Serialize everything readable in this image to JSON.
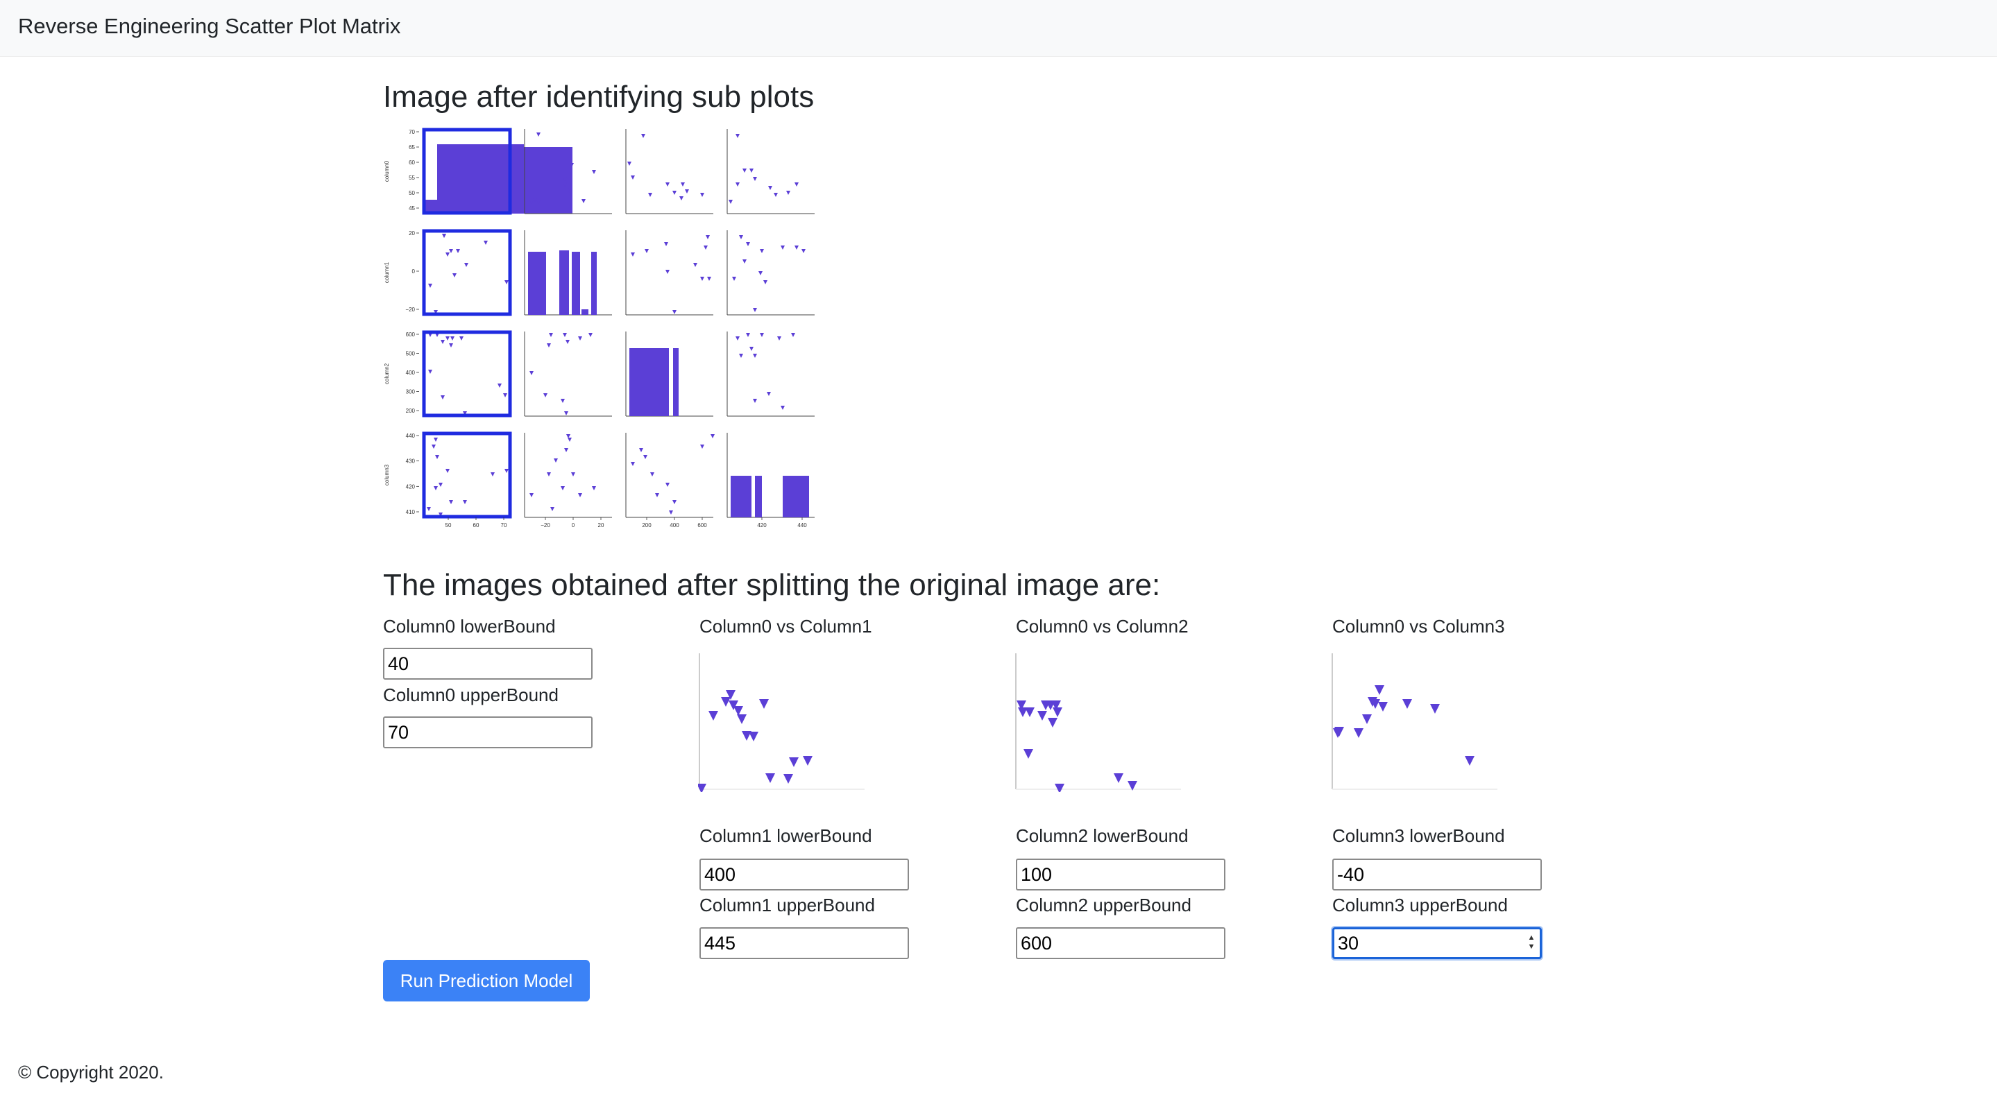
{
  "navbar": {
    "brand": "Reverse Engineering Scatter Plot Matrix"
  },
  "section1": {
    "heading": "Image after identifying sub plots"
  },
  "section2": {
    "heading": "The images obtained after splitting the original image are:"
  },
  "matrix": {
    "columns": [
      "column0",
      "column1",
      "column2",
      "column3"
    ],
    "x_ticks": [
      [
        "50",
        "60",
        "70"
      ],
      [
        "−20",
        "0",
        "20"
      ],
      [
        "200",
        "400",
        "600"
      ],
      [
        "420",
        "440"
      ]
    ],
    "y_ticks": [
      [
        "70",
        "65",
        "60",
        "55",
        "50",
        "45"
      ],
      [
        "20",
        "0",
        "−20"
      ],
      [
        "600",
        "500",
        "400",
        "300",
        "200"
      ],
      [
        "440",
        "430",
        "420",
        "410"
      ]
    ],
    "mark_color": "#5b3fd6",
    "highlight_color": "#1f2be0"
  },
  "chart_data": [
    {
      "type": "scatter",
      "title": "Column0 vs Column1",
      "points": [
        [
          22,
          95
        ],
        [
          40,
          75
        ],
        [
          47,
          65
        ],
        [
          51,
          80
        ],
        [
          58,
          88
        ],
        [
          63,
          100
        ],
        [
          70,
          124
        ],
        [
          80,
          125
        ],
        [
          95,
          78
        ],
        [
          104,
          185
        ],
        [
          138,
          162
        ],
        [
          158,
          160
        ],
        [
          160,
          238
        ],
        [
          130,
          186
        ],
        [
          5,
          200
        ],
        [
          10,
          232
        ],
        [
          5,
          262
        ]
      ]
    },
    {
      "type": "scatter",
      "title": "Column0 vs Column2",
      "points": [
        [
          10,
          80
        ],
        [
          12,
          90
        ],
        [
          22,
          90
        ],
        [
          40,
          95
        ],
        [
          45,
          80
        ],
        [
          52,
          80
        ],
        [
          60,
          80
        ],
        [
          62,
          90
        ],
        [
          55,
          105
        ],
        [
          20,
          150
        ],
        [
          65,
          200
        ],
        [
          90,
          250
        ],
        [
          150,
          185
        ],
        [
          170,
          196
        ],
        [
          200,
          232
        ]
      ]
    },
    {
      "type": "scatter",
      "title": "Column0 vs Column3",
      "points": [
        [
          70,
          58
        ],
        [
          60,
          75
        ],
        [
          64,
          78
        ],
        [
          75,
          82
        ],
        [
          52,
          100
        ],
        [
          40,
          120
        ],
        [
          10,
          120
        ],
        [
          110,
          78
        ],
        [
          150,
          85
        ],
        [
          200,
          160
        ],
        [
          8,
          252
        ],
        [
          12,
          118
        ]
      ]
    }
  ],
  "inputs": {
    "c0_lower_label": "Column0 lowerBound",
    "c0_lower": "40",
    "c0_upper_label": "Column0 upperBound",
    "c0_upper": "70",
    "c1_lower_label": "Column1 lowerBound",
    "c1_lower": "400",
    "c1_upper_label": "Column1 upperBound",
    "c1_upper": "445",
    "c2_lower_label": "Column2 lowerBound",
    "c2_lower": "100",
    "c2_upper_label": "Column2 upperBound",
    "c2_upper": "600",
    "c3_lower_label": "Column3 lowerBound",
    "c3_lower": "-40",
    "c3_upper_label": "Column3 upperBound",
    "c3_upper": "30"
  },
  "subplots": {
    "p1_title": "Column0 vs Column1",
    "p2_title": "Column0 vs Column2",
    "p3_title": "Column0 vs Column3"
  },
  "spinner": {
    "up": "▲",
    "down": "▼"
  },
  "button": {
    "label": "Run Prediction Model"
  },
  "footer": {
    "copyright": "© Copyright 2020."
  }
}
